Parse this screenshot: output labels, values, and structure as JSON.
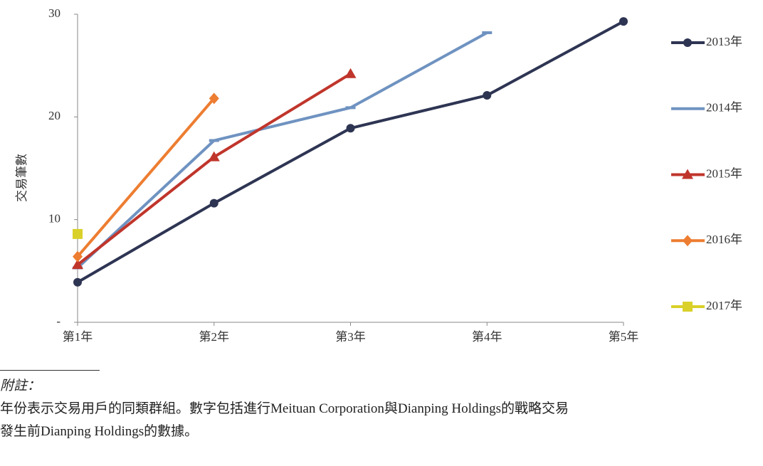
{
  "chart_data": {
    "type": "line",
    "ylabel": "交易筆數",
    "categories": [
      "第1年",
      "第2年",
      "第3年",
      "第4年",
      "第5年"
    ],
    "ylim": [
      0,
      30
    ],
    "yticks": [
      {
        "value": 0,
        "label": "-"
      },
      10,
      20,
      30
    ],
    "series": [
      {
        "name": "2013年",
        "color": "#2e3553",
        "marker": "circle",
        "values": [
          3.9,
          11.6,
          18.9,
          22.1,
          29.3
        ]
      },
      {
        "name": "2014年",
        "color": "#6f93c1",
        "values": [
          5.3,
          17.7,
          20.9,
          28.2,
          null
        ]
      },
      {
        "name": "2015年",
        "color": "#c0352b",
        "marker": "triangle",
        "values": [
          5.6,
          16.1,
          24.2,
          null,
          null
        ]
      },
      {
        "name": "2016年",
        "color": "#ed7d31",
        "marker": "diamond",
        "values": [
          6.4,
          21.8,
          null,
          null,
          null
        ]
      },
      {
        "name": "2017年",
        "color": "#d9d02a",
        "marker": "square",
        "values": [
          8.6,
          null,
          null,
          null,
          null
        ]
      }
    ],
    "legend": "right"
  },
  "footnote": {
    "heading": "附註：",
    "lines": [
      "年份表示交易用戶的同類群組。數字包括進行Meituan Corporation與Dianping Holdings的戰略交易",
      "發生前Dianping Holdings的數據。"
    ]
  }
}
